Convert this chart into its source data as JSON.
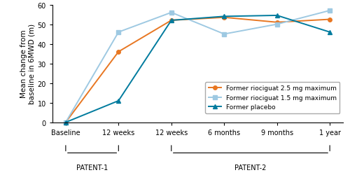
{
  "x_labels": [
    "Baseline",
    "12 weeks",
    "12 weeks",
    "6 months",
    "9 months",
    "1 year"
  ],
  "x_positions": [
    0,
    1,
    2,
    3,
    4,
    5
  ],
  "series": [
    {
      "name": "Former riociguat 2.5 mg maximum",
      "color": "#E87722",
      "marker": "o",
      "markersize": 4,
      "values": [
        0,
        36,
        52,
        53.5,
        51,
        52.5
      ]
    },
    {
      "name": "Former riociguat 1.5 mg maximum",
      "color": "#9EC9E2",
      "marker": "s",
      "markersize": 4,
      "values": [
        0,
        46,
        56,
        45,
        50,
        57
      ]
    },
    {
      "name": "Former placebo",
      "color": "#007B9E",
      "marker": "^",
      "markersize": 5,
      "values": [
        0,
        11,
        52,
        54,
        54.5,
        46
      ]
    }
  ],
  "ylim": [
    0,
    60
  ],
  "yticks": [
    0,
    10,
    20,
    30,
    40,
    50,
    60
  ],
  "ylabel": "Mean change from\nbaseline in 6MWD (m)",
  "patent1_label": "PATENT-1",
  "patent2_label": "PATENT-2",
  "legend_fontsize": 6.5,
  "axis_fontsize": 7.5,
  "tick_fontsize": 7
}
